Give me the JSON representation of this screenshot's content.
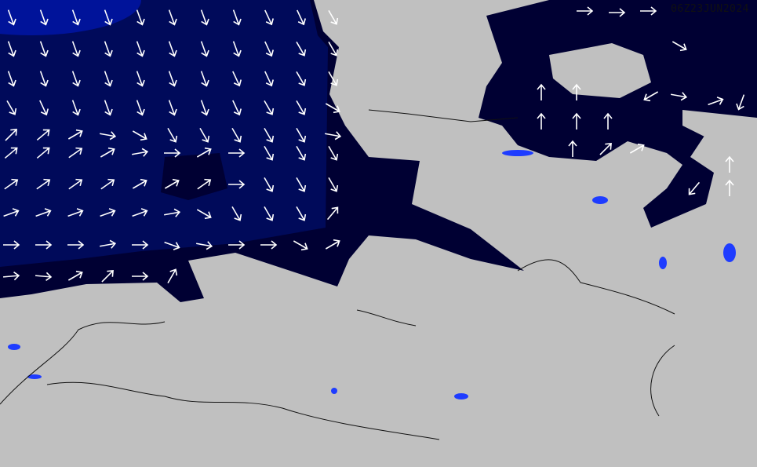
{
  "map": {
    "timestamp": "06Z23JUN2024",
    "colors": {
      "land": "#c0c0c0",
      "sea_deep": "#00085e",
      "sea_open": "#000a7a",
      "sea_coastal": "#000033",
      "lakes": "#1e3cff",
      "arrows": "#ffffff",
      "borders": "#111111"
    },
    "north_sea_arrows_deg": [
      [
        160,
        160,
        160,
        160,
        160,
        160,
        160,
        160,
        155,
        155,
        150
      ],
      [
        160,
        160,
        160,
        160,
        160,
        160,
        160,
        160,
        155,
        150,
        150
      ],
      [
        160,
        160,
        160,
        160,
        160,
        160,
        160,
        155,
        155,
        150,
        150
      ],
      [
        150,
        155,
        160,
        160,
        160,
        160,
        160,
        155,
        150,
        150,
        120
      ],
      [
        45,
        50,
        60,
        100,
        120,
        150,
        150,
        150,
        150,
        150,
        100
      ],
      [
        50,
        50,
        55,
        60,
        80,
        90,
        60,
        90,
        150,
        150,
        150
      ],
      [
        55,
        55,
        55,
        55,
        60,
        60,
        55,
        90,
        150,
        150,
        150
      ],
      [
        70,
        70,
        70,
        70,
        70,
        80,
        120,
        150,
        150,
        150,
        40
      ],
      [
        90,
        90,
        90,
        80,
        90,
        110,
        100,
        90,
        90,
        120,
        60
      ],
      [
        85,
        95,
        60,
        45,
        90,
        30,
        0,
        0,
        0,
        0,
        0
      ]
    ],
    "baltic_arrows": [
      {
        "deg": 90
      },
      {
        "deg": 90
      },
      {
        "deg": 90
      },
      {
        "deg": 120
      },
      {
        "deg": 0
      },
      {
        "deg": 0
      },
      {
        "deg": 0
      },
      {
        "deg": 0
      },
      {
        "deg": 0
      },
      {
        "deg": 0
      },
      {
        "deg": 45
      },
      {
        "deg": 60
      },
      {
        "deg": 100
      },
      {
        "deg": 70
      },
      {
        "deg": 200
      },
      {
        "deg": 240
      },
      {
        "deg": 220
      },
      {
        "deg": 0
      },
      {
        "deg": 0
      }
    ]
  }
}
